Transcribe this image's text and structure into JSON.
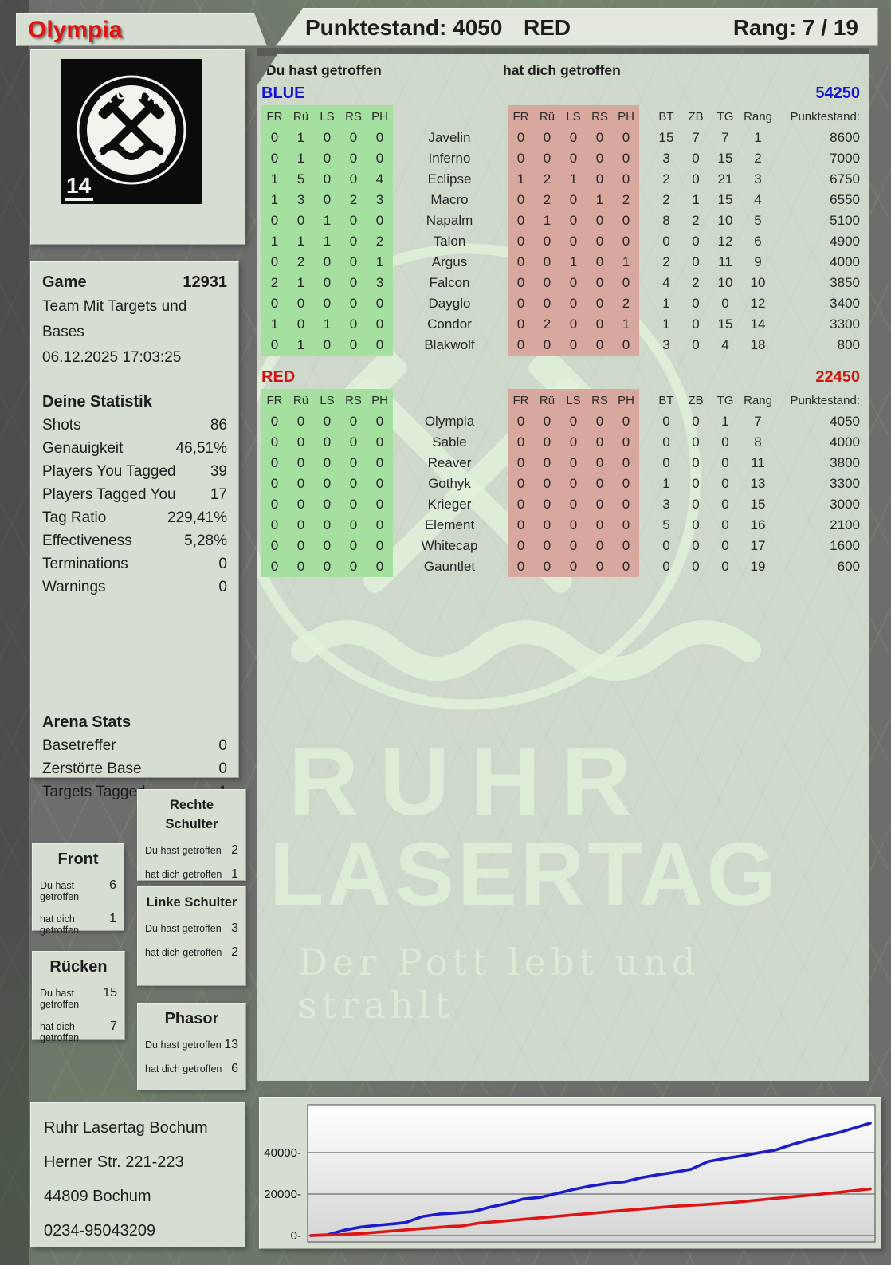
{
  "header": {
    "player": "Olympia",
    "points_label": "Punktestand: 4050",
    "team": "RED",
    "rank_label": "Rang: 7 / 19"
  },
  "logo": {
    "arc_top": "RUHR",
    "arc_bottom": "LASERTAG",
    "badge": "14"
  },
  "game": {
    "label": "Game",
    "id": "12931",
    "mode": "Team Mit Targets und Bases",
    "datetime": "06.12.2025 17:03:25"
  },
  "stats": {
    "title": "Deine Statistik",
    "rows": [
      {
        "label": "Shots",
        "value": "86"
      },
      {
        "label": "Genauigkeit",
        "value": "46,51%"
      },
      {
        "label": "Players You Tagged",
        "value": "39"
      },
      {
        "label": "Players Tagged You",
        "value": "17"
      },
      {
        "label": "Tag Ratio",
        "value": "229,41%"
      },
      {
        "label": "Effectiveness",
        "value": "5,28%"
      },
      {
        "label": "Terminations",
        "value": "0"
      },
      {
        "label": "Warnings",
        "value": "0"
      }
    ]
  },
  "arena": {
    "title": "Arena Stats",
    "rows": [
      {
        "label": "Basetreffer",
        "value": "0"
      },
      {
        "label": "Zerstörte Base",
        "value": "0"
      },
      {
        "label": "Targets Tagged",
        "value": "1"
      }
    ]
  },
  "hitzones": {
    "du_label": "Du hast getroffen",
    "dich_label": "hat dich getroffen",
    "boxes": [
      {
        "title": "Front",
        "du": "6",
        "dich": "1"
      },
      {
        "title": "Rücken",
        "du": "15",
        "dich": "7"
      },
      {
        "title": "Rechte Schulter",
        "du": "2",
        "dich": "1"
      },
      {
        "title": "Linke Schulter",
        "du": "3",
        "dich": "2"
      },
      {
        "title": "Phasor",
        "du": "13",
        "dich": "6"
      }
    ]
  },
  "address": {
    "lines": [
      "Ruhr Lasertag Bochum",
      "Herner Str. 221-223",
      "44809 Bochum",
      "0234-95043209"
    ]
  },
  "watermark": {
    "line1": "RUHR",
    "line2": "LASERTAG",
    "tagline": "Der Pott lebt und strahlt"
  },
  "tables": {
    "du_label": "Du hast getroffen",
    "dich_label": "hat dich getroffen",
    "hit_headers": [
      "FR",
      "Rü",
      "LS",
      "RS",
      "PH"
    ],
    "stat_headers": [
      "BT",
      "ZB",
      "TG",
      "Rang",
      "Punktestand:"
    ],
    "teams": [
      {
        "name": "BLUE",
        "color": "#1414d2",
        "total": "54250",
        "rows": [
          {
            "name": "Javelin",
            "du": [
              0,
              1,
              0,
              0,
              0
            ],
            "dich": [
              0,
              0,
              0,
              0,
              0
            ],
            "stats": [
              15,
              7,
              7,
              1
            ],
            "points": "8600"
          },
          {
            "name": "Inferno",
            "du": [
              0,
              1,
              0,
              0,
              0
            ],
            "dich": [
              0,
              0,
              0,
              0,
              0
            ],
            "stats": [
              3,
              0,
              15,
              2
            ],
            "points": "7000"
          },
          {
            "name": "Eclipse",
            "du": [
              1,
              5,
              0,
              0,
              4
            ],
            "dich": [
              1,
              2,
              1,
              0,
              0
            ],
            "stats": [
              2,
              0,
              21,
              3
            ],
            "points": "6750"
          },
          {
            "name": "Macro",
            "du": [
              1,
              3,
              0,
              2,
              3
            ],
            "dich": [
              0,
              2,
              0,
              1,
              2
            ],
            "stats": [
              2,
              1,
              15,
              4
            ],
            "points": "6550"
          },
          {
            "name": "Napalm",
            "du": [
              0,
              0,
              1,
              0,
              0
            ],
            "dich": [
              0,
              1,
              0,
              0,
              0
            ],
            "stats": [
              8,
              2,
              10,
              5
            ],
            "points": "5100"
          },
          {
            "name": "Talon",
            "du": [
              1,
              1,
              1,
              0,
              2
            ],
            "dich": [
              0,
              0,
              0,
              0,
              0
            ],
            "stats": [
              0,
              0,
              12,
              6
            ],
            "points": "4900"
          },
          {
            "name": "Argus",
            "du": [
              0,
              2,
              0,
              0,
              1
            ],
            "dich": [
              0,
              0,
              1,
              0,
              1
            ],
            "stats": [
              2,
              0,
              11,
              9
            ],
            "points": "4000"
          },
          {
            "name": "Falcon",
            "du": [
              2,
              1,
              0,
              0,
              3
            ],
            "dich": [
              0,
              0,
              0,
              0,
              0
            ],
            "stats": [
              4,
              2,
              10,
              10
            ],
            "points": "3850"
          },
          {
            "name": "Dayglo",
            "du": [
              0,
              0,
              0,
              0,
              0
            ],
            "dich": [
              0,
              0,
              0,
              0,
              2
            ],
            "stats": [
              1,
              0,
              0,
              12
            ],
            "points": "3400"
          },
          {
            "name": "Condor",
            "du": [
              1,
              0,
              1,
              0,
              0
            ],
            "dich": [
              0,
              2,
              0,
              0,
              1
            ],
            "stats": [
              1,
              0,
              15,
              14
            ],
            "points": "3300"
          },
          {
            "name": "Blakwolf",
            "du": [
              0,
              1,
              0,
              0,
              0
            ],
            "dich": [
              0,
              0,
              0,
              0,
              0
            ],
            "stats": [
              3,
              0,
              4,
              18
            ],
            "points": "800"
          }
        ]
      },
      {
        "name": "RED",
        "color": "#d21414",
        "total": "22450",
        "rows": [
          {
            "name": "Olympia",
            "du": [
              0,
              0,
              0,
              0,
              0
            ],
            "dich": [
              0,
              0,
              0,
              0,
              0
            ],
            "stats": [
              0,
              0,
              1,
              7
            ],
            "points": "4050"
          },
          {
            "name": "Sable",
            "du": [
              0,
              0,
              0,
              0,
              0
            ],
            "dich": [
              0,
              0,
              0,
              0,
              0
            ],
            "stats": [
              0,
              0,
              0,
              8
            ],
            "points": "4000"
          },
          {
            "name": "Reaver",
            "du": [
              0,
              0,
              0,
              0,
              0
            ],
            "dich": [
              0,
              0,
              0,
              0,
              0
            ],
            "stats": [
              0,
              0,
              0,
              11
            ],
            "points": "3800"
          },
          {
            "name": "Gothyk",
            "du": [
              0,
              0,
              0,
              0,
              0
            ],
            "dich": [
              0,
              0,
              0,
              0,
              0
            ],
            "stats": [
              1,
              0,
              0,
              13
            ],
            "points": "3300"
          },
          {
            "name": "Krieger",
            "du": [
              0,
              0,
              0,
              0,
              0
            ],
            "dich": [
              0,
              0,
              0,
              0,
              0
            ],
            "stats": [
              3,
              0,
              0,
              15
            ],
            "points": "3000"
          },
          {
            "name": "Element",
            "du": [
              0,
              0,
              0,
              0,
              0
            ],
            "dich": [
              0,
              0,
              0,
              0,
              0
            ],
            "stats": [
              5,
              0,
              0,
              16
            ],
            "points": "2100"
          },
          {
            "name": "Whitecap",
            "du": [
              0,
              0,
              0,
              0,
              0
            ],
            "dich": [
              0,
              0,
              0,
              0,
              0
            ],
            "stats": [
              0,
              0,
              0,
              17
            ],
            "points": "1600"
          },
          {
            "name": "Gauntlet",
            "du": [
              0,
              0,
              0,
              0,
              0
            ],
            "dich": [
              0,
              0,
              0,
              0,
              0
            ],
            "stats": [
              0,
              0,
              0,
              19
            ],
            "points": "600"
          }
        ]
      }
    ]
  },
  "chart_data": {
    "type": "line",
    "title": "",
    "xlabel": "",
    "ylabel": "",
    "yticks": [
      0,
      20000,
      40000
    ],
    "ylim": [
      0,
      63000
    ],
    "grid": true,
    "legend_position": "none",
    "series": [
      {
        "name": "BLUE",
        "color": "#1c1ccc",
        "points": [
          [
            0,
            0
          ],
          [
            0.03,
            400
          ],
          [
            0.06,
            2600
          ],
          [
            0.09,
            4100
          ],
          [
            0.12,
            5000
          ],
          [
            0.15,
            5700
          ],
          [
            0.17,
            6300
          ],
          [
            0.2,
            9200
          ],
          [
            0.23,
            10400
          ],
          [
            0.26,
            10900
          ],
          [
            0.29,
            11500
          ],
          [
            0.32,
            13700
          ],
          [
            0.35,
            15400
          ],
          [
            0.38,
            17600
          ],
          [
            0.41,
            18400
          ],
          [
            0.44,
            20300
          ],
          [
            0.47,
            22200
          ],
          [
            0.5,
            23900
          ],
          [
            0.53,
            25100
          ],
          [
            0.56,
            25900
          ],
          [
            0.59,
            27900
          ],
          [
            0.62,
            29300
          ],
          [
            0.65,
            30500
          ],
          [
            0.68,
            32000
          ],
          [
            0.71,
            35700
          ],
          [
            0.74,
            37200
          ],
          [
            0.77,
            38400
          ],
          [
            0.8,
            39900
          ],
          [
            0.83,
            41200
          ],
          [
            0.86,
            43900
          ],
          [
            0.89,
            46100
          ],
          [
            0.92,
            48100
          ],
          [
            0.95,
            50100
          ],
          [
            0.98,
            52600
          ],
          [
            1,
            54250
          ]
        ]
      },
      {
        "name": "RED",
        "color": "#e01414",
        "points": [
          [
            0,
            0
          ],
          [
            0.05,
            400
          ],
          [
            0.1,
            1200
          ],
          [
            0.15,
            2300
          ],
          [
            0.2,
            3400
          ],
          [
            0.25,
            4400
          ],
          [
            0.27,
            4600
          ],
          [
            0.3,
            6000
          ],
          [
            0.35,
            7100
          ],
          [
            0.4,
            8300
          ],
          [
            0.45,
            9500
          ],
          [
            0.5,
            10700
          ],
          [
            0.55,
            11900
          ],
          [
            0.6,
            13000
          ],
          [
            0.65,
            14100
          ],
          [
            0.7,
            14900
          ],
          [
            0.75,
            15800
          ],
          [
            0.8,
            17100
          ],
          [
            0.85,
            18400
          ],
          [
            0.9,
            19600
          ],
          [
            0.95,
            21000
          ],
          [
            1,
            22450
          ]
        ]
      }
    ]
  }
}
